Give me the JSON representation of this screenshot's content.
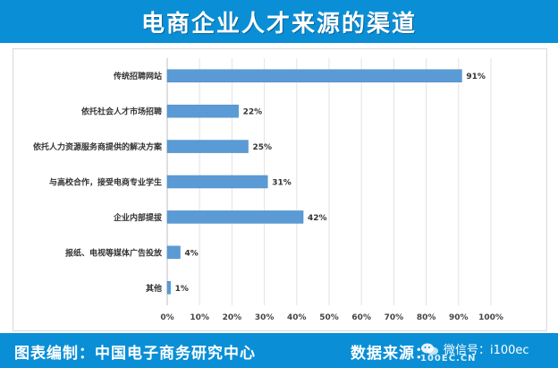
{
  "header": {
    "title": "电商企业人才来源的渠道"
  },
  "footer": {
    "editor_label": "图表编制：中国电子商务研究中心",
    "source_label": "数据来源：",
    "wechat_label": "微信号：i100ec",
    "source_site": "100EC.CN"
  },
  "colors": {
    "bar": "#5b9bd5",
    "bar_border": "#4a87c0",
    "header": "#0a8fd6",
    "grid": "#e3e3e3"
  },
  "chart_data": {
    "type": "bar",
    "orientation": "horizontal",
    "categories": [
      "传统招聘网站",
      "依托社会人才市场招聘",
      "依托人力资源服务商提供的解决方案",
      "与高校合作，接受电商专业学生",
      "企业内部提拔",
      "报纸、电视等媒体广告投放",
      "其他"
    ],
    "values": [
      91,
      22,
      25,
      31,
      42,
      4,
      1
    ],
    "value_labels": [
      "91%",
      "22%",
      "25%",
      "31%",
      "42%",
      "4%",
      "1%"
    ],
    "xlim": [
      0,
      100
    ],
    "x_ticks": [
      "0%",
      "10%",
      "20%",
      "30%",
      "40%",
      "50%",
      "60%",
      "70%",
      "80%",
      "90%",
      "100%"
    ],
    "grid": true
  }
}
